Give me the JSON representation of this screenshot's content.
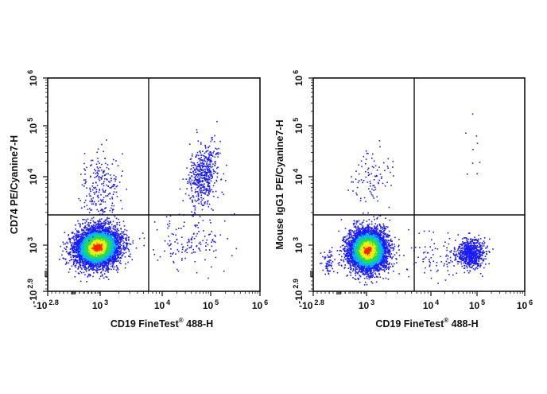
{
  "chart_data": [
    {
      "type": "scatter",
      "subtype": "flow-cytometry-density-dot-plot",
      "title": "",
      "xlabel": "CD19  FineTest® 488-H",
      "ylabel": "CD74 PE/Cyanine7-H",
      "x_scale": "biexponential",
      "y_scale": "biexponential",
      "x_ticks": [
        "-10^2.8",
        "10^3",
        "10^4",
        "10^5",
        "10^6"
      ],
      "y_ticks": [
        "-10^2.9",
        "10^3",
        "10^4",
        "10^5",
        "10^6"
      ],
      "xlim": [
        "-10^2.8",
        "10^6"
      ],
      "ylim": [
        "-10^2.9",
        "10^6"
      ],
      "quadrant_gate": {
        "x": "~10^3.7",
        "y": "~10^3.5"
      },
      "populations": [
        {
          "name": "CD19- CD74- (lower-left, dense)",
          "x_center": "~10^3",
          "y_center": "~10^3",
          "density": "high"
        },
        {
          "name": "CD19- CD74+ (upper-left)",
          "x_center": "~10^3",
          "y_center": "~10^4",
          "density": "sparse"
        },
        {
          "name": "CD19+ CD74+ (upper-right)",
          "x_center": "~10^4.7",
          "y_center": "~10^4",
          "density": "moderate"
        },
        {
          "name": "CD19+ CD74- (lower-right)",
          "x_center": "~10^4.5",
          "y_center": "~10^3",
          "density": "sparse"
        }
      ],
      "grid": false,
      "legend": "none"
    },
    {
      "type": "scatter",
      "subtype": "flow-cytometry-density-dot-plot",
      "title": "",
      "xlabel": "CD19  FineTest® 488-H",
      "ylabel": "Mouse IgG1 PE/Cyanine7-H",
      "x_scale": "biexponential",
      "y_scale": "biexponential",
      "x_ticks": [
        "-10^2.8",
        "10^3",
        "10^4",
        "10^5",
        "10^6"
      ],
      "y_ticks": [
        "-10^2.9",
        "10^3",
        "10^4",
        "10^5",
        "10^6"
      ],
      "xlim": [
        "-10^2.8",
        "10^6"
      ],
      "ylim": [
        "-10^2.9",
        "10^6"
      ],
      "quadrant_gate": {
        "x": "~10^3.7",
        "y": "~10^3.5"
      },
      "populations": [
        {
          "name": "lower-left (dense)",
          "x_center": "~10^3",
          "y_center": "~10^3",
          "density": "high"
        },
        {
          "name": "upper-left",
          "x_center": "~10^3",
          "y_center": "~10^4",
          "density": "sparse"
        },
        {
          "name": "lower-right (isotype control, CD19+)",
          "x_center": "~10^4.8",
          "y_center": "~10^3",
          "density": "moderate"
        },
        {
          "name": "upper-right",
          "x_center": "~10^4.8",
          "y_center": "~10^5",
          "density": "very sparse"
        }
      ],
      "grid": false,
      "legend": "none"
    }
  ],
  "plots": [
    {
      "id": "left",
      "ylabel": "CD74 PE/Cyanine7-H",
      "xlabel_main": "CD19  FineTest",
      "xlabel_sup": "®",
      "xlabel_tail": " 488-H"
    },
    {
      "id": "right",
      "ylabel": "Mouse IgG1 PE/Cyanine7-H",
      "xlabel_main": "CD19  FineTest",
      "xlabel_sup": "®",
      "xlabel_tail": " 488-H"
    }
  ],
  "ticks": {
    "x": [
      {
        "base": "-10",
        "exp": "2.8"
      },
      {
        "base": "10",
        "exp": "3"
      },
      {
        "base": "10",
        "exp": "4"
      },
      {
        "base": "10",
        "exp": "5"
      },
      {
        "base": "10",
        "exp": "6"
      }
    ],
    "y": [
      {
        "base": "-10",
        "exp": "2.9"
      },
      {
        "base": "10",
        "exp": "3"
      },
      {
        "base": "10",
        "exp": "4"
      },
      {
        "base": "10",
        "exp": "5"
      },
      {
        "base": "10",
        "exp": "6"
      }
    ]
  },
  "colors": {
    "axis": "#111111",
    "density_low": "#1a1aff",
    "density_mid_low": "#00b4ff",
    "density_mid": "#22dd55",
    "density_mid_high": "#f2f000",
    "density_high": "#ff2200"
  }
}
